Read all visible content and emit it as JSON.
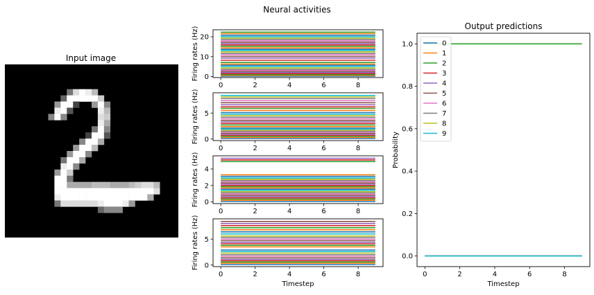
{
  "figure": {
    "suptitle": "Neural activities"
  },
  "input_image": {
    "title": "Input image",
    "description_rows": [
      "............................",
      "............................",
      "............................",
      "............................",
      "..........7DFEB.............",
      ".........6FFFFFC............",
      "........9FF4..9F8...........",
      "........EF5....EB...........",
      ".......8F8.....DC...........",
      "...............EA...........",
      "..............7F8...........",
      ".............4FF5...........",
      "............8FFA............",
      "...........9FFB.............",
      "..........9FF8..............",
      ".........7FFA...............",
      ".........EF8................",
      "........9FC.................",
      "........FF7......... .......",
      "........FFAAAABBBAAABCDDB...",
      "........FFFFFFFFFFFFFFFFD...",
      "........EFFFFFFFFFFFFFFA....",
      "........7DDDDDDEFFFE9.......",
      "...............6888.........",
      "............................",
      "............................",
      "............................",
      "............................"
    ]
  },
  "chart_data": [
    {
      "type": "line",
      "panel": "layer-1",
      "xlabel": "",
      "ylabel": "Firing rates (Hz)",
      "x": [
        0,
        1,
        2,
        3,
        4,
        5,
        6,
        7,
        8,
        9
      ],
      "xticks": [
        0,
        2,
        4,
        6,
        8
      ],
      "yticks": [
        0,
        10,
        20
      ],
      "ylim": [
        -0.5,
        23.5
      ],
      "constant_series_levels": [
        0.2,
        0.6,
        1.0,
        1.5,
        2.0,
        2.6,
        3.1,
        3.6,
        4.3,
        5.0,
        5.7,
        6.3,
        7.1,
        8.2,
        9.3,
        10.1,
        10.9,
        11.6,
        12.4,
        13.1,
        13.7,
        14.4,
        15.2,
        15.9,
        16.5,
        17.2,
        17.9,
        18.6,
        19.3,
        20.0,
        20.8,
        21.6,
        22.3
      ]
    },
    {
      "type": "line",
      "panel": "layer-2",
      "xlabel": "",
      "ylabel": "Firing rates (Hz)",
      "x": [
        0,
        1,
        2,
        3,
        4,
        5,
        6,
        7,
        8,
        9
      ],
      "xticks": [
        0,
        2,
        4,
        6,
        8
      ],
      "yticks": [
        0,
        5
      ],
      "ylim": [
        -0.3,
        8.9
      ],
      "constant_series_levels": [
        0.1,
        0.3,
        0.5,
        0.7,
        0.9,
        1.1,
        1.3,
        1.5,
        1.7,
        1.9,
        2.1,
        2.4,
        2.7,
        3.0,
        3.3,
        3.6,
        3.9,
        4.2,
        4.5,
        4.8,
        5.1,
        5.5,
        5.9,
        6.2,
        6.6,
        7.0,
        7.4,
        7.8,
        8.1,
        8.4
      ]
    },
    {
      "type": "line",
      "panel": "layer-3",
      "xlabel": "",
      "ylabel": "Firing rates (Hz)",
      "x": [
        0,
        1,
        2,
        3,
        4,
        5,
        6,
        7,
        8,
        9
      ],
      "xticks": [
        0,
        2,
        4,
        6,
        8
      ],
      "yticks": [
        0,
        2,
        4
      ],
      "ylim": [
        -0.2,
        5.6
      ],
      "constant_series_levels": [
        0.05,
        0.2,
        0.35,
        0.5,
        0.65,
        0.8,
        0.95,
        1.1,
        1.25,
        1.4,
        1.55,
        1.7,
        1.85,
        2.0,
        2.15,
        2.3,
        2.45,
        2.6,
        2.75,
        2.9,
        3.1,
        3.3,
        4.9,
        5.1,
        5.3
      ]
    },
    {
      "type": "line",
      "panel": "layer-4",
      "xlabel": "Timestep",
      "ylabel": "Firing rates (Hz)",
      "x": [
        0,
        1,
        2,
        3,
        4,
        5,
        6,
        7,
        8,
        9
      ],
      "xticks": [
        0,
        2,
        4,
        6,
        8
      ],
      "yticks": [
        0,
        5
      ],
      "ylim": [
        -0.3,
        8.9
      ],
      "constant_series_levels": [
        0.1,
        0.35,
        0.6,
        0.85,
        1.1,
        1.4,
        1.7,
        2.0,
        2.3,
        2.6,
        2.9,
        3.5,
        3.8,
        4.1,
        4.4,
        4.7,
        5.0,
        5.3,
        5.6,
        6.0,
        6.4,
        6.8,
        7.2,
        7.6,
        8.0,
        8.4
      ]
    },
    {
      "type": "line",
      "panel": "output",
      "title": "Output predictions",
      "xlabel": "Timestep",
      "ylabel": "Probability",
      "x": [
        0,
        1,
        2,
        3,
        4,
        5,
        6,
        7,
        8,
        9
      ],
      "xticks": [
        0,
        2,
        4,
        6,
        8
      ],
      "yticks": [
        0.0,
        0.2,
        0.4,
        0.6,
        0.8,
        1.0
      ],
      "ylim": [
        -0.05,
        1.05
      ],
      "legend_position": "upper-left",
      "series": [
        {
          "name": "0",
          "values": [
            0,
            0,
            0,
            0,
            0,
            0,
            0,
            0,
            0,
            0
          ]
        },
        {
          "name": "1",
          "values": [
            0,
            0,
            0,
            0,
            0,
            0,
            0,
            0,
            0,
            0
          ]
        },
        {
          "name": "2",
          "values": [
            1,
            1,
            1,
            1,
            1,
            1,
            1,
            1,
            1,
            1
          ]
        },
        {
          "name": "3",
          "values": [
            0,
            0,
            0,
            0,
            0,
            0,
            0,
            0,
            0,
            0
          ]
        },
        {
          "name": "4",
          "values": [
            0,
            0,
            0,
            0,
            0,
            0,
            0,
            0,
            0,
            0
          ]
        },
        {
          "name": "5",
          "values": [
            0,
            0,
            0,
            0,
            0,
            0,
            0,
            0,
            0,
            0
          ]
        },
        {
          "name": "6",
          "values": [
            0,
            0,
            0,
            0,
            0,
            0,
            0,
            0,
            0,
            0
          ]
        },
        {
          "name": "7",
          "values": [
            0,
            0,
            0,
            0,
            0,
            0,
            0,
            0,
            0,
            0
          ]
        },
        {
          "name": "8",
          "values": [
            0,
            0,
            0,
            0,
            0,
            0,
            0,
            0,
            0,
            0
          ]
        },
        {
          "name": "9",
          "values": [
            0,
            0,
            0,
            0,
            0,
            0,
            0,
            0,
            0,
            0
          ]
        }
      ]
    }
  ],
  "palette": [
    "#1f77b4",
    "#ff7f0e",
    "#2ca02c",
    "#d62728",
    "#9467bd",
    "#8c564b",
    "#e377c2",
    "#7f7f7f",
    "#bcbd22",
    "#17becf"
  ]
}
